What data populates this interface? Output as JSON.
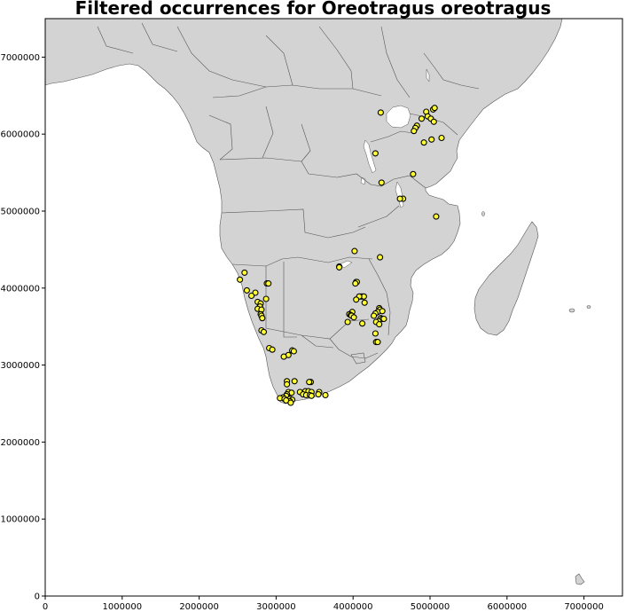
{
  "title": "Filtered occurrences for Oreotragus oreotragus",
  "chart_data": {
    "type": "scatter",
    "title": "Filtered occurrences for Oreotragus oreotragus",
    "xlabel": "",
    "ylabel": "",
    "xlim": [
      0,
      7500000
    ],
    "ylim": [
      0,
      7500000
    ],
    "x_ticks": [
      0,
      1000000,
      2000000,
      3000000,
      4000000,
      5000000,
      6000000,
      7000000
    ],
    "y_ticks": [
      0,
      1000000,
      2000000,
      3000000,
      4000000,
      5000000,
      6000000,
      7000000
    ],
    "x_tick_labels": [
      "0",
      "1000000",
      "2000000",
      "3000000",
      "4000000",
      "5000000",
      "6000000",
      "7000000"
    ],
    "y_tick_labels": [
      "0",
      "1000000",
      "2000000",
      "3000000",
      "4000000",
      "5000000",
      "6000000",
      "7000000"
    ],
    "marker_color": "#ffff33",
    "marker_edge_color": "#000000",
    "land_color": "#d3d3d3",
    "grid": false,
    "points": [
      [
        4360000,
        6280000
      ],
      [
        4950000,
        6290000
      ],
      [
        5040000,
        6320000
      ],
      [
        5060000,
        6340000
      ],
      [
        4970000,
        6230000
      ],
      [
        5010000,
        6200000
      ],
      [
        4890000,
        6200000
      ],
      [
        5050000,
        6160000
      ],
      [
        4830000,
        6110000
      ],
      [
        4810000,
        6080000
      ],
      [
        4790000,
        6040000
      ],
      [
        5020000,
        5930000
      ],
      [
        5150000,
        5950000
      ],
      [
        4920000,
        5890000
      ],
      [
        4290000,
        5750000
      ],
      [
        4780000,
        5480000
      ],
      [
        4370000,
        5370000
      ],
      [
        4650000,
        5160000
      ],
      [
        4610000,
        5160000
      ],
      [
        5080000,
        4930000
      ],
      [
        4020000,
        4480000
      ],
      [
        4350000,
        4400000
      ],
      [
        3820000,
        4280000
      ],
      [
        3820000,
        4270000
      ],
      [
        2590000,
        4200000
      ],
      [
        2530000,
        4110000
      ],
      [
        2880000,
        4060000
      ],
      [
        2900000,
        4060000
      ],
      [
        4040000,
        4080000
      ],
      [
        4050000,
        4080000
      ],
      [
        4030000,
        4060000
      ],
      [
        2620000,
        3970000
      ],
      [
        2730000,
        3940000
      ],
      [
        2680000,
        3900000
      ],
      [
        4100000,
        3890000
      ],
      [
        4120000,
        3890000
      ],
      [
        4140000,
        3890000
      ],
      [
        4080000,
        3890000
      ],
      [
        2870000,
        3860000
      ],
      [
        4040000,
        3850000
      ],
      [
        4150000,
        3810000
      ],
      [
        2760000,
        3820000
      ],
      [
        2800000,
        3800000
      ],
      [
        4340000,
        3740000
      ],
      [
        4350000,
        3720000
      ],
      [
        4320000,
        3690000
      ],
      [
        4380000,
        3700000
      ],
      [
        2790000,
        3760000
      ],
      [
        2760000,
        3730000
      ],
      [
        2810000,
        3720000
      ],
      [
        3990000,
        3690000
      ],
      [
        2800000,
        3660000
      ],
      [
        2810000,
        3640000
      ],
      [
        2820000,
        3610000
      ],
      [
        3950000,
        3660000
      ],
      [
        3970000,
        3650000
      ],
      [
        3980000,
        3640000
      ],
      [
        4010000,
        3620000
      ],
      [
        4290000,
        3670000
      ],
      [
        4270000,
        3640000
      ],
      [
        4360000,
        3610000
      ],
      [
        4380000,
        3600000
      ],
      [
        4400000,
        3600000
      ],
      [
        4330000,
        3570000
      ],
      [
        4300000,
        3560000
      ],
      [
        3930000,
        3560000
      ],
      [
        4120000,
        3540000
      ],
      [
        4340000,
        3530000
      ],
      [
        2810000,
        3450000
      ],
      [
        2840000,
        3430000
      ],
      [
        4290000,
        3410000
      ],
      [
        4300000,
        3300000
      ],
      [
        4320000,
        3300000
      ],
      [
        2910000,
        3220000
      ],
      [
        2950000,
        3200000
      ],
      [
        3210000,
        3190000
      ],
      [
        3230000,
        3180000
      ],
      [
        3160000,
        3130000
      ],
      [
        3100000,
        3110000
      ],
      [
        3450000,
        2780000
      ],
      [
        3430000,
        2780000
      ],
      [
        3140000,
        2790000
      ],
      [
        3240000,
        2790000
      ],
      [
        3140000,
        2750000
      ],
      [
        3160000,
        2650000
      ],
      [
        3200000,
        2640000
      ],
      [
        3310000,
        2650000
      ],
      [
        3380000,
        2660000
      ],
      [
        3420000,
        2660000
      ],
      [
        3460000,
        2650000
      ],
      [
        3560000,
        2650000
      ],
      [
        3550000,
        2620000
      ],
      [
        3640000,
        2610000
      ],
      [
        3350000,
        2620000
      ],
      [
        3390000,
        2610000
      ],
      [
        3440000,
        2610000
      ],
      [
        3460000,
        2600000
      ],
      [
        3140000,
        2620000
      ],
      [
        3130000,
        2600000
      ],
      [
        3090000,
        2580000
      ],
      [
        3050000,
        2570000
      ],
      [
        3110000,
        2560000
      ],
      [
        3180000,
        2560000
      ],
      [
        3210000,
        2550000
      ],
      [
        3180000,
        2530000
      ],
      [
        3130000,
        2540000
      ],
      [
        3190000,
        2510000
      ]
    ]
  }
}
